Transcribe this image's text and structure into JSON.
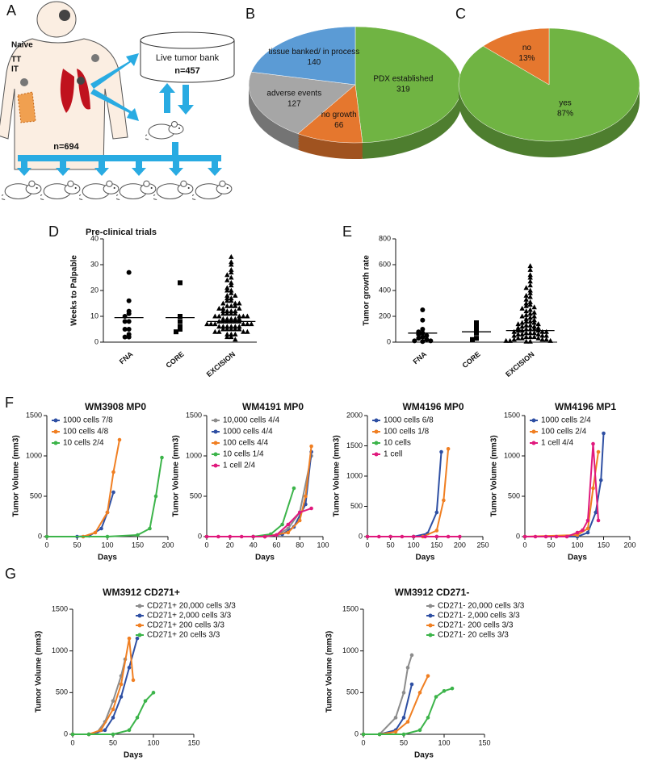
{
  "panel_labels": [
    "A",
    "B",
    "C",
    "D",
    "E",
    "F",
    "G"
  ],
  "diagram": {
    "labels": [
      "Naive",
      "TT",
      "IT"
    ],
    "bank": [
      "Live tumor bank",
      "n=457"
    ],
    "patients": "n=694",
    "trials": "Pre-clinical trials"
  },
  "chart_data": [
    {
      "type": "pie",
      "categories": [
        "PDX established",
        "no growth",
        "adverse events",
        "tissue banked/ in process"
      ],
      "values": [
        319,
        66,
        127,
        140
      ],
      "colors": [
        "#70b443",
        "#e5772e",
        "#a6a6a6",
        "#5b9bd5"
      ]
    },
    {
      "type": "pie",
      "categories": [
        "yes",
        "no"
      ],
      "values": [
        87,
        13
      ],
      "value_labels": [
        "87%",
        "13%"
      ],
      "colors": [
        "#70b443",
        "#e5772e"
      ]
    },
    {
      "type": "dot",
      "ylabel": "Weeks to Palpable",
      "categories": [
        "FNA",
        "CORE",
        "EXCISION"
      ],
      "markers": [
        "circle",
        "square",
        "triangle"
      ],
      "values": [
        [
          27,
          16,
          12,
          11,
          10,
          8,
          8,
          5,
          5,
          3,
          2,
          2
        ],
        [
          23,
          10,
          8,
          6,
          5,
          4
        ],
        [
          33,
          31,
          30,
          28,
          27,
          26,
          25,
          24,
          23,
          22,
          21,
          20,
          20,
          19,
          18,
          18,
          17,
          17,
          16,
          16,
          15,
          15,
          15,
          14,
          14,
          14,
          13,
          13,
          13,
          12,
          12,
          12,
          12,
          11,
          11,
          11,
          11,
          10,
          10,
          10,
          10,
          10,
          9,
          9,
          9,
          9,
          9,
          8,
          8,
          8,
          8,
          8,
          8,
          7,
          7,
          7,
          7,
          7,
          7,
          6,
          6,
          6,
          6,
          6,
          6,
          5,
          5,
          5,
          5,
          5,
          4,
          4,
          4,
          4,
          3,
          3,
          3,
          2,
          2,
          1
        ]
      ],
      "means": [
        9.5,
        9.5,
        8
      ],
      "ylim": [
        0,
        40
      ],
      "yticks": [
        0,
        10,
        20,
        30,
        40
      ]
    },
    {
      "type": "dot",
      "ylabel": "Tumor growth rate",
      "categories": [
        "FNA",
        "CORE",
        "EXCISION"
      ],
      "markers": [
        "circle",
        "square",
        "triangle"
      ],
      "values": [
        [
          250,
          170,
          100,
          80,
          70,
          60,
          50,
          40,
          30,
          20,
          10,
          10,
          5
        ],
        [
          150,
          130,
          100,
          70,
          30,
          20
        ],
        [
          590,
          560,
          520,
          500,
          470,
          440,
          420,
          400,
          380,
          360,
          350,
          330,
          310,
          300,
          290,
          280,
          270,
          260,
          250,
          240,
          230,
          220,
          210,
          200,
          200,
          190,
          180,
          170,
          160,
          160,
          150,
          150,
          140,
          140,
          130,
          130,
          120,
          120,
          110,
          110,
          100,
          100,
          100,
          90,
          90,
          90,
          80,
          80,
          80,
          70,
          70,
          70,
          60,
          60,
          60,
          50,
          50,
          50,
          40,
          40,
          40,
          30,
          30,
          30,
          20,
          20,
          20,
          10,
          10,
          10,
          5,
          5
        ]
      ],
      "means": [
        70,
        80,
        90
      ],
      "ylim": [
        0,
        800
      ],
      "yticks": [
        0,
        200,
        400,
        600,
        800
      ]
    },
    {
      "type": "line",
      "title": "WM3908 MP0",
      "xlabel": "Days",
      "ylabel": "Tumor Volume (mm3)",
      "legend": "upper left",
      "xlim": [
        0,
        200
      ],
      "xticks": [
        0,
        50,
        100,
        150,
        200
      ],
      "ylim": [
        0,
        1500
      ],
      "yticks": [
        0,
        500,
        1000,
        1500
      ],
      "series": [
        {
          "name": "1000 cells 7/8",
          "color": "#2e4fa3",
          "x": [
            0,
            50,
            70,
            90,
            100,
            110
          ],
          "values": [
            0,
            0,
            10,
            100,
            300,
            550
          ]
        },
        {
          "name": "100 cells 4/8",
          "color": "#f07f22",
          "x": [
            0,
            60,
            80,
            100,
            110,
            120
          ],
          "values": [
            0,
            0,
            50,
            300,
            800,
            1200
          ]
        },
        {
          "name": "10 cells 2/4",
          "color": "#3cb44a",
          "x": [
            0,
            100,
            150,
            170,
            180,
            190
          ],
          "values": [
            0,
            0,
            20,
            100,
            500,
            980
          ]
        }
      ]
    },
    {
      "type": "line",
      "title": "WM4191 MP0",
      "xlabel": "Days",
      "ylabel": "Tumor Volume (mm3)",
      "legend": "upper left",
      "xlim": [
        0,
        100
      ],
      "xticks": [
        0,
        20,
        40,
        60,
        80,
        100
      ],
      "ylim": [
        0,
        1500
      ],
      "yticks": [
        0,
        500,
        1000,
        1500
      ],
      "series": [
        {
          "name": "10,000 cells 4/4",
          "color": "#8c8c8c",
          "x": [
            0,
            40,
            60,
            70,
            80,
            90
          ],
          "values": [
            0,
            0,
            20,
            100,
            300,
            1000
          ]
        },
        {
          "name": "1000 cells 4/4",
          "color": "#2e4fa3",
          "x": [
            0,
            50,
            65,
            75,
            85,
            90
          ],
          "values": [
            0,
            0,
            30,
            120,
            400,
            1050
          ]
        },
        {
          "name": "100 cells 4/4",
          "color": "#f07f22",
          "x": [
            0,
            50,
            70,
            80,
            85,
            90
          ],
          "values": [
            0,
            0,
            50,
            200,
            500,
            1120
          ]
        },
        {
          "name": "10 cells 1/4",
          "color": "#3cb44a",
          "x": [
            0,
            40,
            55,
            65,
            75
          ],
          "values": [
            0,
            0,
            30,
            150,
            600
          ]
        },
        {
          "name": "1 cell 2/4",
          "color": "#e0197d",
          "x": [
            0,
            10,
            20,
            30,
            40,
            50,
            60,
            70,
            80,
            90
          ],
          "values": [
            0,
            0,
            0,
            0,
            0,
            0,
            20,
            150,
            300,
            350
          ]
        }
      ]
    },
    {
      "type": "line",
      "title": "WM4196 MP0",
      "xlabel": "Days",
      "ylabel": "Tumor Volume (mm3)",
      "legend": "upper left",
      "xlim": [
        0,
        250
      ],
      "xticks": [
        0,
        50,
        100,
        150,
        200,
        250
      ],
      "ylim": [
        0,
        2000
      ],
      "yticks": [
        0,
        500,
        1000,
        1500,
        2000
      ],
      "series": [
        {
          "name": "1000 cells 6/8",
          "color": "#2e4fa3",
          "x": [
            0,
            100,
            130,
            150,
            160
          ],
          "values": [
            0,
            0,
            50,
            400,
            1400
          ]
        },
        {
          "name": "100 cells 1/8",
          "color": "#f07f22",
          "x": [
            0,
            120,
            150,
            165,
            175
          ],
          "values": [
            0,
            0,
            100,
            600,
            1450
          ]
        },
        {
          "name": "10 cells",
          "color": "#3cb44a",
          "x": [
            0,
            50,
            100,
            150
          ],
          "values": [
            0,
            0,
            0,
            0
          ]
        },
        {
          "name": "1 cell",
          "color": "#e0197d",
          "x": [
            0,
            25,
            50,
            75,
            100,
            125,
            150,
            175,
            200
          ],
          "values": [
            0,
            0,
            0,
            0,
            0,
            0,
            0,
            0,
            0
          ]
        }
      ]
    },
    {
      "type": "line",
      "title": "WM4196 MP1",
      "xlabel": "Days",
      "ylabel": "Tumor Volume (mm3)",
      "legend": "upper left",
      "xlim": [
        0,
        200
      ],
      "xticks": [
        0,
        50,
        100,
        150,
        200
      ],
      "ylim": [
        0,
        1500
      ],
      "yticks": [
        0,
        500,
        1000,
        1500
      ],
      "series": [
        {
          "name": "1000 cells 2/4",
          "color": "#2e4fa3",
          "x": [
            0,
            100,
            120,
            135,
            145,
            150
          ],
          "values": [
            0,
            0,
            50,
            300,
            700,
            1280
          ]
        },
        {
          "name": "100 cells 2/4",
          "color": "#f07f22",
          "x": [
            0,
            100,
            120,
            130,
            140
          ],
          "values": [
            0,
            20,
            100,
            600,
            1050
          ]
        },
        {
          "name": "1 cell 4/4",
          "color": "#e0197d",
          "x": [
            0,
            20,
            40,
            60,
            80,
            100,
            110,
            120,
            130,
            140
          ],
          "values": [
            0,
            0,
            0,
            0,
            0,
            50,
            80,
            200,
            1150,
            200
          ]
        }
      ]
    },
    {
      "type": "line",
      "title": "WM3912 CD271+",
      "xlabel": "Days",
      "ylabel": "Tumor Volume (mm3)",
      "legend": "upper right",
      "xlim": [
        0,
        150
      ],
      "xticks": [
        0,
        50,
        100,
        150
      ],
      "ylim": [
        0,
        1500
      ],
      "yticks": [
        0,
        500,
        1000,
        1500
      ],
      "series": [
        {
          "name": "CD271+ 20,000 cells 3/3",
          "color": "#8c8c8c",
          "x": [
            0,
            20,
            30,
            40,
            50,
            60,
            65
          ],
          "values": [
            0,
            0,
            20,
            150,
            400,
            700,
            900
          ]
        },
        {
          "name": "CD271+ 2,000 cells 3/3",
          "color": "#2e4fa3",
          "x": [
            0,
            20,
            40,
            50,
            60,
            70,
            80
          ],
          "values": [
            0,
            0,
            50,
            200,
            450,
            800,
            1150
          ]
        },
        {
          "name": "CD271+ 200 cells 3/3",
          "color": "#f07f22",
          "x": [
            0,
            20,
            35,
            50,
            60,
            70,
            75
          ],
          "values": [
            0,
            0,
            50,
            300,
            600,
            1150,
            650
          ]
        },
        {
          "name": "CD271+ 20 cells 3/3",
          "color": "#3cb44a",
          "x": [
            0,
            20,
            50,
            70,
            80,
            90,
            100
          ],
          "values": [
            0,
            0,
            0,
            50,
            200,
            400,
            500
          ]
        }
      ]
    },
    {
      "type": "line",
      "title": "WM3912 CD271-",
      "xlabel": "Days",
      "ylabel": "Tumor Volume (mm3)",
      "legend": "upper right",
      "xlim": [
        0,
        150
      ],
      "xticks": [
        0,
        50,
        100,
        150
      ],
      "ylim": [
        0,
        1500
      ],
      "yticks": [
        0,
        500,
        1000,
        1500
      ],
      "series": [
        {
          "name": "CD271- 20,000 cells 3/3",
          "color": "#8c8c8c",
          "x": [
            0,
            20,
            40,
            50,
            55,
            60
          ],
          "values": [
            0,
            0,
            200,
            500,
            800,
            950
          ]
        },
        {
          "name": "CD271- 2,000 cells 3/3",
          "color": "#2e4fa3",
          "x": [
            0,
            20,
            40,
            50,
            60
          ],
          "values": [
            0,
            0,
            50,
            200,
            600
          ]
        },
        {
          "name": "CD271- 200 cells 3/3",
          "color": "#f07f22",
          "x": [
            0,
            20,
            40,
            55,
            70,
            80
          ],
          "values": [
            0,
            0,
            30,
            150,
            500,
            700
          ]
        },
        {
          "name": "CD271- 20 cells 3/3",
          "color": "#3cb44a",
          "x": [
            0,
            20,
            50,
            70,
            80,
            90,
            100,
            110
          ],
          "values": [
            0,
            0,
            0,
            50,
            200,
            450,
            520,
            550
          ]
        }
      ]
    }
  ]
}
